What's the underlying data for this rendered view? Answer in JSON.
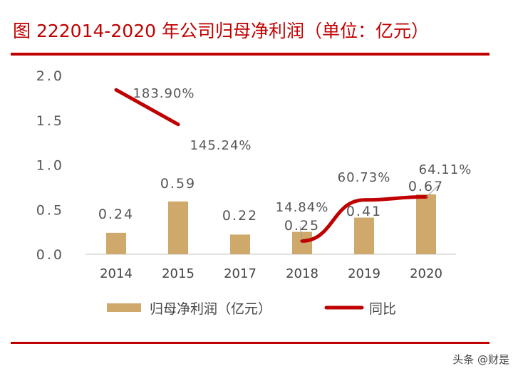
{
  "title": "图 222014-2020 年公司归母净利润（单位：亿元）",
  "watermark": "头条 @财是",
  "chart_data": {
    "type": "bar+line",
    "categories": [
      "2014",
      "2015",
      "2017",
      "2018",
      "2019",
      "2020"
    ],
    "ylim": [
      0,
      2.0
    ],
    "yticks": [
      "0.0",
      "0.5",
      "1.0",
      "1.5",
      "2.0"
    ],
    "grid": false,
    "legend": "bottom",
    "series": [
      {
        "name": "归母净利润（亿元）",
        "type": "bar",
        "color": "#cfa96b",
        "values": [
          0.24,
          0.59,
          0.22,
          0.25,
          0.41,
          0.67
        ],
        "labels": [
          "0.24",
          "0.59",
          "0.22",
          "0.25",
          "0.41",
          "0.67"
        ]
      },
      {
        "name": "同比",
        "type": "line",
        "color": "#c00000",
        "values": [
          1.839,
          1.4524,
          null,
          0.1484,
          0.6073,
          0.6411
        ],
        "labels": [
          "183.90%",
          "145.24%",
          "",
          "14.84%",
          "60.73%",
          "64.11%"
        ]
      }
    ]
  }
}
